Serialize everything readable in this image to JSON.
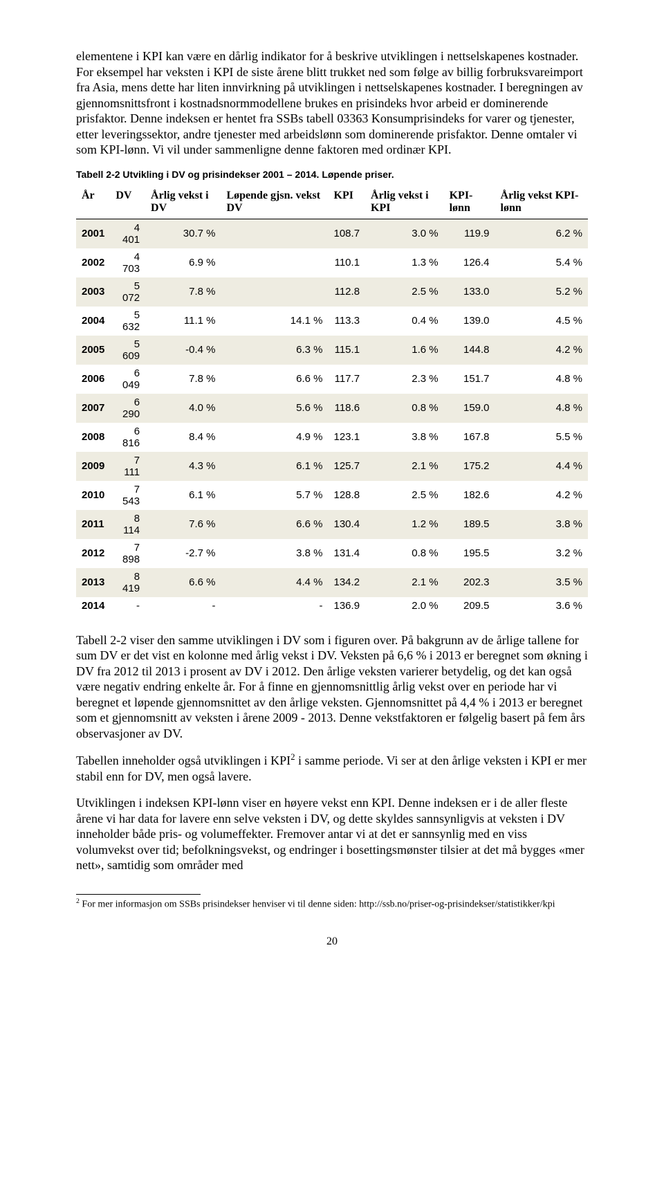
{
  "paragraphs": {
    "p1": "elementene i KPI kan være en dårlig indikator for å beskrive utviklingen i nettselskapenes kostnader. For eksempel har veksten i KPI de siste årene blitt trukket ned som følge av billig forbruksvareimport fra Asia, mens dette har liten innvirkning på utviklingen i nettselskapenes kostnader. I beregningen av gjennomsnittsfront i kostnadsnormmodellene brukes en prisindeks hvor arbeid er dominerende prisfaktor. Denne indeksen er hentet fra SSBs tabell 03363 Konsumprisindeks for varer og tjenester, etter leveringssektor, andre tjenester med arbeidslønn som dominerende prisfaktor. Denne omtaler vi som KPI-lønn. Vi vil under sammenligne denne faktoren med ordinær KPI.",
    "p2_a": "Tabell 2-2 viser den samme utviklingen i DV som i figuren over. På bakgrunn av de årlige tallene for sum DV er det vist en kolonne med årlig vekst i DV. Veksten på 6,6 % i 2013 er beregnet som økning i DV fra 2012 til 2013 i prosent av DV i 2012. Den årlige veksten varierer betydelig, og det kan også være negativ endring enkelte år. For å finne en gjennomsnittlig årlig vekst over en periode har vi beregnet et løpende gjennomsnittet av den årlige veksten. Gjennomsnittet på 4,4 % i 2013 er beregnet som et gjennomsnitt av veksten i årene 2009 - 2013. Denne vekstfaktoren er følgelig basert på fem års observasjoner av DV.",
    "p3_a": "Tabellen inneholder også utviklingen i KPI",
    "p3_b": " i samme periode. Vi ser at den årlige veksten i KPI er mer stabil enn for DV, men også lavere.",
    "p4": "Utviklingen i indeksen KPI-lønn viser en høyere vekst enn KPI. Denne indeksen er i de aller fleste årene vi har data for lavere enn selve veksten i DV, og dette skyldes sannsynligvis at veksten i DV inneholder både pris- og volumeffekter. Fremover antar vi at det er sannsynlig med en viss volumvekst over tid; befolkningsvekst, og endringer i bosettingsmønster tilsier at det må bygges «mer nett», samtidig som områder med"
  },
  "tableCaption": "Tabell 2-2 Utvikling i DV og prisindekser 2001 – 2014. Løpende priser.",
  "columns": [
    "År",
    "DV",
    "Årlig vekst i DV",
    "Løpende gjsn. vekst DV",
    "KPI",
    "Årlig vekst i KPI",
    "KPI-lønn",
    "Årlig vekst KPI-lønn"
  ],
  "rows": [
    {
      "year": "2001",
      "dv": "4 401",
      "dvg": "30.7 %",
      "run": "",
      "kpi": "108.7",
      "kpig": "3.0 %",
      "kl": "119.9",
      "klg": "6.2 %"
    },
    {
      "year": "2002",
      "dv": "4 703",
      "dvg": "6.9 %",
      "run": "",
      "kpi": "110.1",
      "kpig": "1.3 %",
      "kl": "126.4",
      "klg": "5.4 %"
    },
    {
      "year": "2003",
      "dv": "5 072",
      "dvg": "7.8 %",
      "run": "",
      "kpi": "112.8",
      "kpig": "2.5 %",
      "kl": "133.0",
      "klg": "5.2 %"
    },
    {
      "year": "2004",
      "dv": "5 632",
      "dvg": "11.1 %",
      "run": "14.1 %",
      "kpi": "113.3",
      "kpig": "0.4 %",
      "kl": "139.0",
      "klg": "4.5 %"
    },
    {
      "year": "2005",
      "dv": "5 609",
      "dvg": "-0.4 %",
      "run": "6.3 %",
      "kpi": "115.1",
      "kpig": "1.6 %",
      "kl": "144.8",
      "klg": "4.2 %"
    },
    {
      "year": "2006",
      "dv": "6 049",
      "dvg": "7.8 %",
      "run": "6.6 %",
      "kpi": "117.7",
      "kpig": "2.3 %",
      "kl": "151.7",
      "klg": "4.8 %"
    },
    {
      "year": "2007",
      "dv": "6 290",
      "dvg": "4.0 %",
      "run": "5.6 %",
      "kpi": "118.6",
      "kpig": "0.8 %",
      "kl": "159.0",
      "klg": "4.8 %"
    },
    {
      "year": "2008",
      "dv": "6 816",
      "dvg": "8.4 %",
      "run": "4.9 %",
      "kpi": "123.1",
      "kpig": "3.8 %",
      "kl": "167.8",
      "klg": "5.5 %"
    },
    {
      "year": "2009",
      "dv": "7 111",
      "dvg": "4.3 %",
      "run": "6.1 %",
      "kpi": "125.7",
      "kpig": "2.1 %",
      "kl": "175.2",
      "klg": "4.4 %"
    },
    {
      "year": "2010",
      "dv": "7 543",
      "dvg": "6.1 %",
      "run": "5.7 %",
      "kpi": "128.8",
      "kpig": "2.5 %",
      "kl": "182.6",
      "klg": "4.2 %"
    },
    {
      "year": "2011",
      "dv": "8 114",
      "dvg": "7.6 %",
      "run": "6.6 %",
      "kpi": "130.4",
      "kpig": "1.2 %",
      "kl": "189.5",
      "klg": "3.8 %"
    },
    {
      "year": "2012",
      "dv": "7 898",
      "dvg": "-2.7 %",
      "run": "3.8 %",
      "kpi": "131.4",
      "kpig": "0.8 %",
      "kl": "195.5",
      "klg": "3.2 %"
    },
    {
      "year": "2013",
      "dv": "8 419",
      "dvg": "6.6 %",
      "run": "4.4 %",
      "kpi": "134.2",
      "kpig": "2.1 %",
      "kl": "202.3",
      "klg": "3.5 %"
    },
    {
      "year": "2014",
      "dv": "-",
      "dvg": "-",
      "run": "-",
      "kpi": "136.9",
      "kpig": "2.0 %",
      "kl": "209.5",
      "klg": "3.6 %"
    }
  ],
  "bandColor": "#eeece1",
  "footnote": {
    "marker": "2",
    "text": " For mer informasjon om SSBs prisindekser henviser vi til denne siden: http://ssb.no/priser-og-prisindekser/statistikker/kpi"
  },
  "pageNumber": "20"
}
